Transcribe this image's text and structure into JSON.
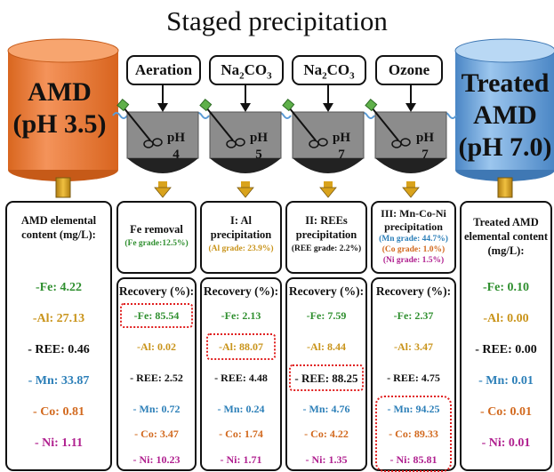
{
  "title": "Staged precipitation",
  "feed_tank": {
    "label_line1": "AMD",
    "label_line2": "(pH 3.5)"
  },
  "treated_tank": {
    "label_line1": "Treated",
    "label_line2": "AMD",
    "label_line3": "(pH 7.0)"
  },
  "stages": [
    {
      "reagent_pre": "Aeration",
      "reagent_sub": "",
      "reagent_post": "",
      "ph_label": "pH",
      "ph_value": "4",
      "heading_lines": [
        "Fe removal"
      ],
      "grades": [
        "(Fe grade:12.5%)"
      ],
      "recovery_title": "Recovery (%):",
      "recovery": [
        "-Fe: 85.54",
        "-Al: 0.02",
        "- REE: 2.52",
        "- Mn: 0.72",
        "- Co: 3.47",
        "- Ni: 10.23"
      ]
    },
    {
      "reagent_pre": "Na",
      "reagent_sub": "2",
      "reagent_post": "CO",
      "reagent_sub2": "3",
      "ph_label": "pH",
      "ph_value": "5",
      "heading_lines": [
        "I: Al",
        "precipitation"
      ],
      "grades": [
        "(Al grade: 23.9%)"
      ],
      "recovery_title": "Recovery (%):",
      "recovery": [
        "-Fe: 2.13",
        "-Al: 88.07",
        "- REE: 4.48",
        "- Mn: 0.24",
        "- Co: 1.74",
        "- Ni: 1.71"
      ]
    },
    {
      "reagent_pre": "Na",
      "reagent_sub": "2",
      "reagent_post": "CO",
      "reagent_sub2": "3",
      "ph_label": "pH",
      "ph_value": "7",
      "heading_lines": [
        "II: REEs",
        "precipitation"
      ],
      "grades": [
        "(REE grade: 2.2%)"
      ],
      "recovery_title": "Recovery (%):",
      "recovery": [
        "-Fe: 7.59",
        "-Al: 8.44",
        "- REE: 88.25",
        "- Mn: 4.76",
        "- Co: 4.22",
        "- Ni: 1.35"
      ]
    },
    {
      "reagent_pre": "Ozone",
      "reagent_sub": "",
      "reagent_post": "",
      "ph_label": "pH",
      "ph_value": "7",
      "heading_lines": [
        "III: Mn-Co-Ni",
        "precipitation"
      ],
      "grades": [
        "(Mn grade: 44.7%)",
        "(Co grade: 1.0%)",
        "(Ni grade: 1.5%)"
      ],
      "recovery_title": "Recovery (%):",
      "recovery": [
        "-Fe: 2.37",
        "-Al: 3.47",
        "- REE: 4.75",
        "- Mn: 94.25",
        "- Co: 89.33",
        "- Ni: 85.81"
      ]
    }
  ],
  "amd_content": {
    "heading_lines": [
      "AMD elemental",
      "content (mg/L):"
    ],
    "values": [
      "-Fe: 4.22",
      "-Al: 27.13",
      "- REE: 0.46",
      "- Mn: 33.87",
      "- Co: 0.81",
      "- Ni: 1.11"
    ]
  },
  "treated_content": {
    "heading_lines": [
      "Treated AMD",
      "elemental content",
      "(mg/L):"
    ],
    "values": [
      "-Fe: 0.10",
      "-Al: 0.00",
      "- REE: 0.00",
      "- Mn: 0.01",
      "- Co: 0.01",
      "- Ni: 0.01"
    ]
  },
  "colors": {
    "feed_tank": "#ef7a2f",
    "treated_tank": "#5b9bd5",
    "reactor": "#8c8c8c",
    "sludge": "#222222",
    "arrow": "#d9a31c",
    "highlight": "#e02020",
    "agitator_tip": "#5fb04a"
  },
  "icons": {
    "agitator": "mixer-icon",
    "wave": "connector-wave-icon"
  }
}
